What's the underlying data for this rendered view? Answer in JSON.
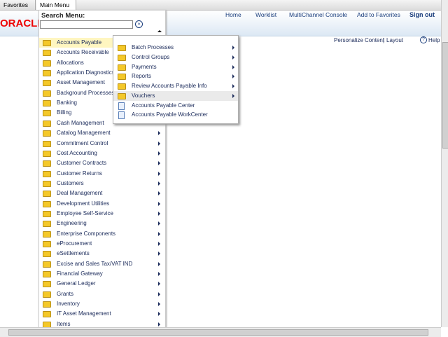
{
  "topbar": {
    "favorites": "Favorites",
    "main_menu": "Main Menu"
  },
  "header": {
    "logo": "ORACLE",
    "nav": [
      "Home",
      "Worklist",
      "MultiChannel Console",
      "Add to Favorites",
      "Sign out"
    ]
  },
  "search": {
    "label": "Search Menu:"
  },
  "pagelinks": {
    "personalize": "Personalize Content",
    "separator": "|",
    "layout": "Layout",
    "help": "Help"
  },
  "menu": {
    "items": [
      {
        "label": "Accounts Payable",
        "arrow": false
      },
      {
        "label": "Accounts Receivable",
        "arrow": false
      },
      {
        "label": "Allocations",
        "arrow": false
      },
      {
        "label": "Application Diagnostics",
        "arrow": false
      },
      {
        "label": "Asset Management",
        "arrow": false
      },
      {
        "label": "Background Processes",
        "arrow": false
      },
      {
        "label": "Banking",
        "arrow": false
      },
      {
        "label": "Billing",
        "arrow": false
      },
      {
        "label": "Cash Management",
        "arrow": false
      },
      {
        "label": "Catalog Management",
        "arrow": true
      },
      {
        "label": "Commitment Control",
        "arrow": true
      },
      {
        "label": "Cost Accounting",
        "arrow": true
      },
      {
        "label": "Customer Contracts",
        "arrow": true
      },
      {
        "label": "Customer Returns",
        "arrow": true
      },
      {
        "label": "Customers",
        "arrow": true
      },
      {
        "label": "Deal Management",
        "arrow": true
      },
      {
        "label": "Development Utilities",
        "arrow": true
      },
      {
        "label": "Employee Self-Service",
        "arrow": true
      },
      {
        "label": "Engineering",
        "arrow": true
      },
      {
        "label": "Enterprise Components",
        "arrow": true
      },
      {
        "label": "eProcurement",
        "arrow": true
      },
      {
        "label": "eSettlements",
        "arrow": true
      },
      {
        "label": "Excise and Sales Tax/VAT IND",
        "arrow": true
      },
      {
        "label": "Financial Gateway",
        "arrow": true
      },
      {
        "label": "General Ledger",
        "arrow": true
      },
      {
        "label": "Grants",
        "arrow": true
      },
      {
        "label": "Inventory",
        "arrow": true
      },
      {
        "label": "IT Asset Management",
        "arrow": true
      },
      {
        "label": "Items",
        "arrow": true
      }
    ]
  },
  "submenu": {
    "items": [
      {
        "label": "Batch Processes",
        "kind": "folder",
        "arrow": true
      },
      {
        "label": "Control Groups",
        "kind": "folder",
        "arrow": true
      },
      {
        "label": "Payments",
        "kind": "folder",
        "arrow": true
      },
      {
        "label": "Reports",
        "kind": "folder",
        "arrow": true
      },
      {
        "label": "Review Accounts Payable Info",
        "kind": "folder",
        "arrow": true
      },
      {
        "label": "Vouchers",
        "kind": "folder",
        "arrow": true
      },
      {
        "label": "Accounts Payable Center",
        "kind": "page",
        "arrow": false
      },
      {
        "label": "Accounts Payable WorkCenter",
        "kind": "page",
        "arrow": false
      }
    ]
  }
}
